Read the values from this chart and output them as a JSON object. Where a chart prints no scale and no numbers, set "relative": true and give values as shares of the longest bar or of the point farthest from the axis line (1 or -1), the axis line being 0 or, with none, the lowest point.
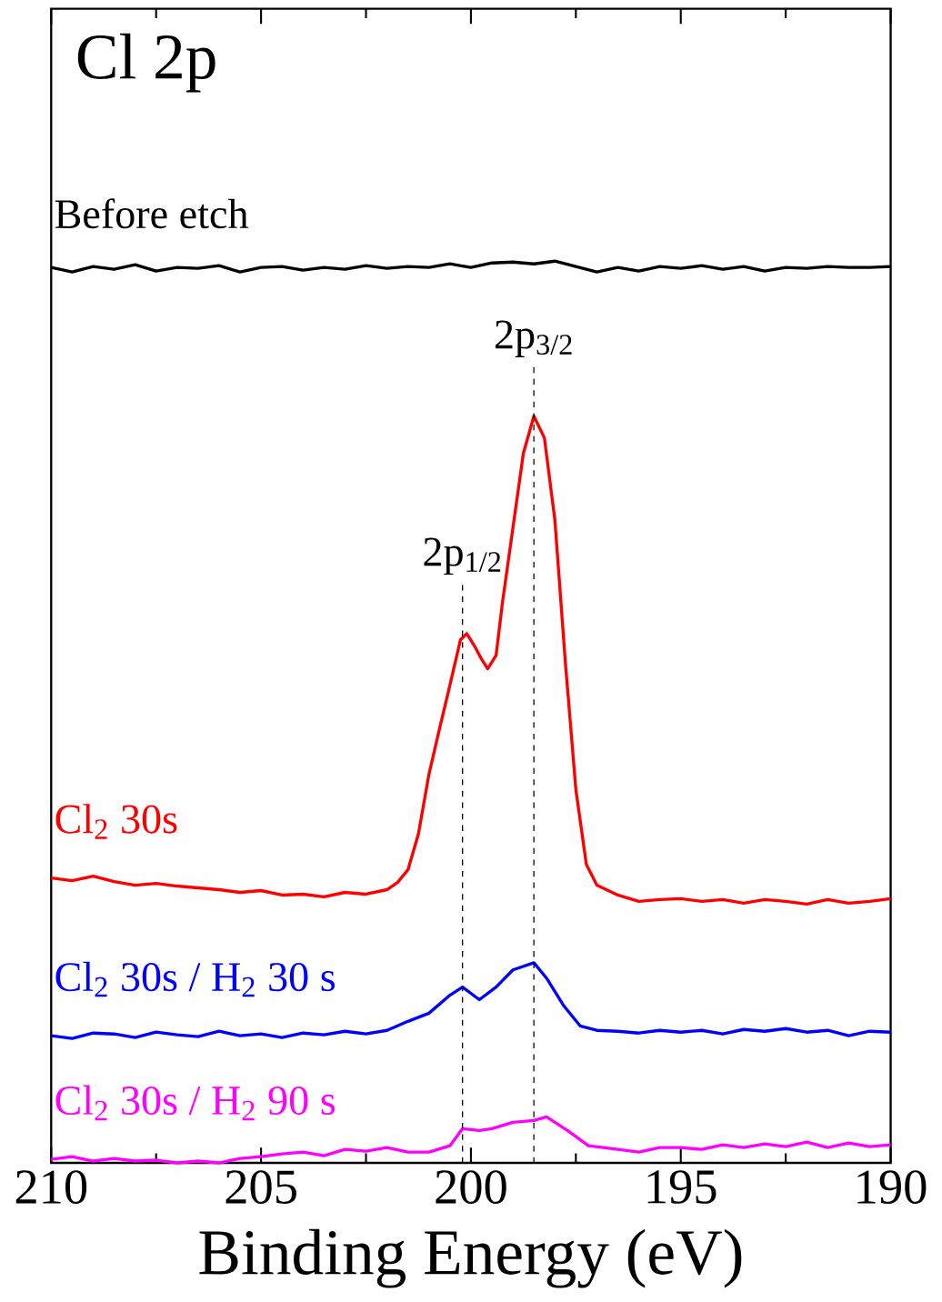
{
  "chart_data": {
    "type": "line",
    "title": "Cl 2p",
    "xlabel": "Binding Energy (eV)",
    "relative": true,
    "marker": "none",
    "line_style": "solid",
    "xlim": [
      210,
      190
    ],
    "xticks": [
      210,
      205,
      200,
      195,
      190
    ],
    "series": [
      {
        "name": "Before etch",
        "color": "#000000",
        "x": [
          210,
          209.5,
          209,
          208.5,
          208,
          207.5,
          207,
          206.5,
          206,
          205.5,
          205,
          204.5,
          204,
          203.5,
          203,
          202.5,
          202,
          201.5,
          201,
          200.5,
          200,
          199.5,
          199,
          198.5,
          198,
          197.5,
          197,
          196.5,
          196,
          195.5,
          195,
          194.5,
          194,
          193.5,
          193,
          192.5,
          192,
          191.5,
          191,
          190.5,
          190
        ],
        "values": [
          0.993,
          0.988,
          0.994,
          0.991,
          0.996,
          0.989,
          0.993,
          0.992,
          0.995,
          0.988,
          0.993,
          0.994,
          0.99,
          0.993,
          0.991,
          0.995,
          0.992,
          0.994,
          0.993,
          0.997,
          0.993,
          0.998,
          0.999,
          0.997,
          1.0,
          0.994,
          0.988,
          0.993,
          0.989,
          0.994,
          0.992,
          0.995,
          0.991,
          0.994,
          0.989,
          0.993,
          0.992,
          0.994,
          0.993,
          0.993,
          0.994
        ]
      },
      {
        "name": "Cl$_{2}$ 30s",
        "color": "#ff0000",
        "x": [
          210,
          209.5,
          209,
          208.5,
          208,
          207.5,
          207,
          206.5,
          206,
          205.5,
          205,
          204.5,
          204,
          203.5,
          203,
          202.5,
          202,
          201.75,
          201.5,
          201.25,
          201,
          200.75,
          200.5,
          200.25,
          200.1,
          199.9,
          199.75,
          199.6,
          199.4,
          199.25,
          199,
          198.75,
          198.5,
          198.25,
          198,
          197.75,
          197.5,
          197.25,
          197,
          196.5,
          196,
          195.5,
          195,
          194.5,
          194,
          193.5,
          193,
          192.5,
          192,
          191.5,
          191,
          190.5,
          190
        ],
        "values": [
          0.316,
          0.313,
          0.318,
          0.312,
          0.308,
          0.31,
          0.307,
          0.305,
          0.303,
          0.3,
          0.302,
          0.297,
          0.298,
          0.295,
          0.3,
          0.298,
          0.303,
          0.311,
          0.325,
          0.365,
          0.431,
          0.481,
          0.53,
          0.58,
          0.587,
          0.572,
          0.559,
          0.548,
          0.563,
          0.621,
          0.704,
          0.787,
          0.828,
          0.804,
          0.713,
          0.555,
          0.414,
          0.331,
          0.308,
          0.297,
          0.29,
          0.292,
          0.293,
          0.29,
          0.292,
          0.288,
          0.292,
          0.29,
          0.287,
          0.292,
          0.288,
          0.29,
          0.293
        ]
      },
      {
        "name": "Cl$_{2}$ 30s / H$_{2}$ 30 s",
        "color": "#0000ff",
        "x": [
          210,
          209.5,
          209,
          208.5,
          208,
          207.5,
          207,
          206.5,
          206,
          205.5,
          205,
          204.5,
          204,
          203.5,
          203,
          202.5,
          202,
          201.5,
          201,
          200.5,
          200.2,
          199.8,
          199.4,
          199,
          198.5,
          198.2,
          197.8,
          197.4,
          197,
          196.5,
          196,
          195.5,
          195,
          194.5,
          194,
          193.5,
          193,
          192.5,
          192,
          191.5,
          191,
          190.5,
          190
        ],
        "values": [
          0.141,
          0.138,
          0.144,
          0.143,
          0.139,
          0.145,
          0.142,
          0.14,
          0.146,
          0.141,
          0.143,
          0.139,
          0.144,
          0.142,
          0.146,
          0.143,
          0.147,
          0.157,
          0.166,
          0.186,
          0.195,
          0.181,
          0.195,
          0.214,
          0.222,
          0.205,
          0.175,
          0.152,
          0.147,
          0.146,
          0.144,
          0.147,
          0.145,
          0.147,
          0.143,
          0.148,
          0.146,
          0.149,
          0.145,
          0.147,
          0.141,
          0.146,
          0.145
        ]
      },
      {
        "name": "Cl$_{2}$ 30s / H$_{2}$ 90 s",
        "color": "#ff00ff",
        "x": [
          210,
          209.5,
          209,
          208.5,
          208,
          207.5,
          207,
          206.5,
          206,
          205.5,
          205,
          204.5,
          204,
          203.5,
          203,
          202.5,
          202,
          201.5,
          201,
          200.5,
          200.2,
          199.8,
          199.5,
          199,
          198.5,
          198.2,
          197.7,
          197.2,
          196.5,
          196,
          195.5,
          195,
          194.5,
          194,
          193.5,
          193,
          192.5,
          192,
          191.5,
          191,
          190.5,
          190
        ],
        "values": [
          0.004,
          0.007,
          0.002,
          0.005,
          0.002,
          0.003,
          0.0,
          0.002,
          0.0,
          0.005,
          0.007,
          0.01,
          0.012,
          0.008,
          0.015,
          0.013,
          0.017,
          0.012,
          0.012,
          0.019,
          0.038,
          0.036,
          0.038,
          0.045,
          0.047,
          0.051,
          0.036,
          0.019,
          0.015,
          0.012,
          0.017,
          0.017,
          0.015,
          0.02,
          0.017,
          0.021,
          0.018,
          0.023,
          0.017,
          0.022,
          0.018,
          0.02
        ]
      }
    ],
    "ref_lines": [
      {
        "axis": "x",
        "value": 200.2,
        "label": "2p$_{1/2}$",
        "line_style": "dashed",
        "color": "#000000"
      },
      {
        "axis": "x",
        "value": 198.5,
        "label": "2p$_{3/2}$",
        "line_style": "dashed",
        "color": "#000000"
      }
    ]
  }
}
